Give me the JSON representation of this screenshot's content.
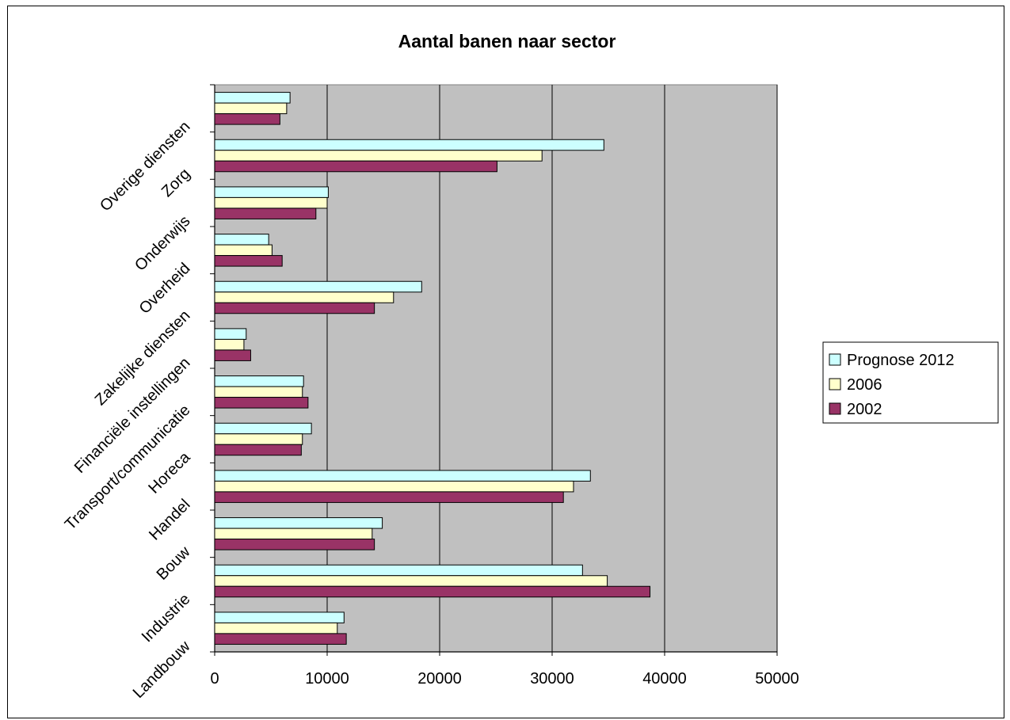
{
  "chart_data": {
    "type": "bar",
    "orientation": "horizontal",
    "title": "Aantal banen naar sector",
    "xlabel": "",
    "ylabel": "",
    "xlim": [
      0,
      50000
    ],
    "xticks": [
      "0",
      "10000",
      "20000",
      "30000",
      "40000",
      "50000"
    ],
    "grid": true,
    "legend_position": "right",
    "categories": [
      "Landbouw",
      "Industrie",
      "Bouw",
      "Handel",
      "Horeca",
      "Transport/communicatie",
      "Financiële instellingen",
      "Zakelijke diensten",
      "Overheid",
      "Onderwijs",
      "Zorg",
      "Overige diensten"
    ],
    "series": [
      {
        "name": "Prognose 2012",
        "color": "#ccffff",
        "values": [
          11500,
          32700,
          14900,
          33400,
          8600,
          7900,
          2800,
          18400,
          4800,
          10100,
          34600,
          6700
        ]
      },
      {
        "name": "2006",
        "color": "#ffffcc",
        "values": [
          10900,
          34900,
          14000,
          31900,
          7800,
          7800,
          2600,
          15900,
          5100,
          10000,
          29100,
          6400
        ]
      },
      {
        "name": "2002",
        "color": "#993366",
        "values": [
          11700,
          38700,
          14200,
          31000,
          7700,
          8300,
          3200,
          14200,
          6000,
          9000,
          25100,
          5800
        ]
      }
    ]
  }
}
